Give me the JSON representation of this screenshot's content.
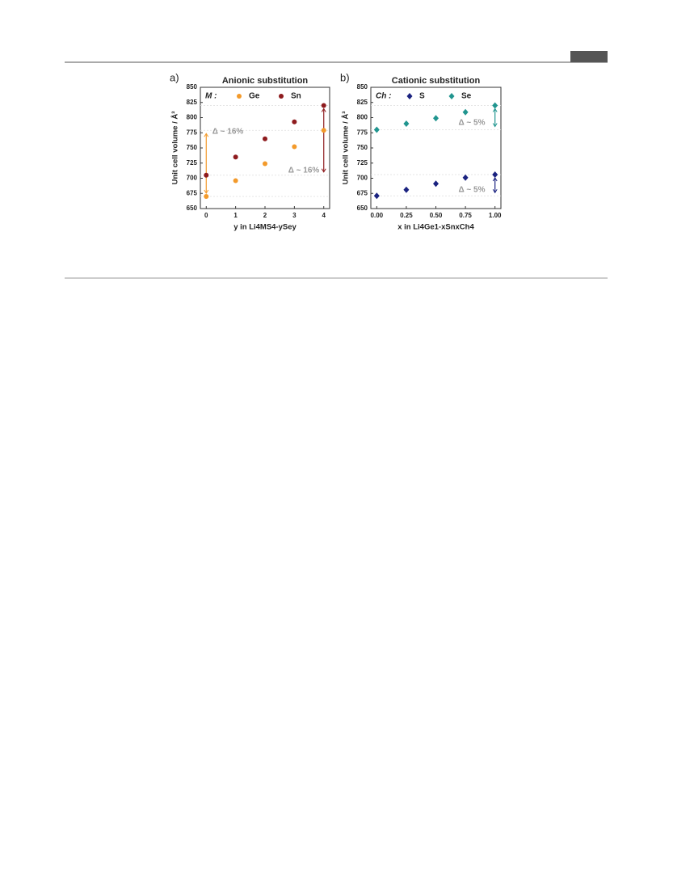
{
  "chart_data": [
    {
      "type": "scatter",
      "panel": "a)",
      "title": "Anionic substitution",
      "legend_title": "M :",
      "xlabel": "y in Li4MS4-ySey",
      "ylabel": "Unit cell volume / Å³",
      "marker": "circle",
      "x": [
        0,
        1,
        2,
        3,
        4
      ],
      "series": [
        {
          "name": "Ge",
          "color": "#f39a2b",
          "values": [
            670,
            696,
            724,
            752,
            779
          ]
        },
        {
          "name": "Sn",
          "color": "#8e1b1e",
          "values": [
            705,
            735,
            765,
            793,
            820
          ]
        }
      ],
      "xlim": [
        -0.2,
        4.2
      ],
      "xticks": [
        0,
        1,
        2,
        3,
        4
      ],
      "ylim": [
        650,
        850
      ],
      "yticks": [
        650,
        675,
        700,
        725,
        750,
        775,
        800,
        825,
        850
      ],
      "annotations": [
        "Δ ~ 16%",
        "Δ ~ 16%"
      ]
    },
    {
      "type": "scatter",
      "panel": "b)",
      "title": "Cationic substitution",
      "legend_title": "Ch :",
      "xlabel": "x in Li4Ge1-xSnxCh4",
      "ylabel": "Unit cell volume / Å³",
      "marker": "diamond",
      "x": [
        0,
        0.25,
        0.5,
        0.75,
        1
      ],
      "series": [
        {
          "name": "S",
          "color": "#1b2380",
          "values": [
            671,
            681,
            691,
            701,
            706
          ]
        },
        {
          "name": "Se",
          "color": "#21958f",
          "values": [
            780,
            790,
            799,
            809,
            820
          ]
        }
      ],
      "xlim": [
        -0.05,
        1.05
      ],
      "xticks": [
        {
          "value": 0,
          "label": "0.00"
        },
        {
          "value": 0.25,
          "label": "0.25"
        },
        {
          "value": 0.5,
          "label": "0.50"
        },
        {
          "value": 0.75,
          "label": "0.75"
        },
        {
          "value": 1,
          "label": "1.00"
        }
      ],
      "ylim": [
        650,
        850
      ],
      "yticks": [
        650,
        675,
        700,
        725,
        750,
        775,
        800,
        825,
        850
      ],
      "annotations": [
        "Δ ~ 5%",
        "Δ ~ 5%"
      ]
    }
  ]
}
